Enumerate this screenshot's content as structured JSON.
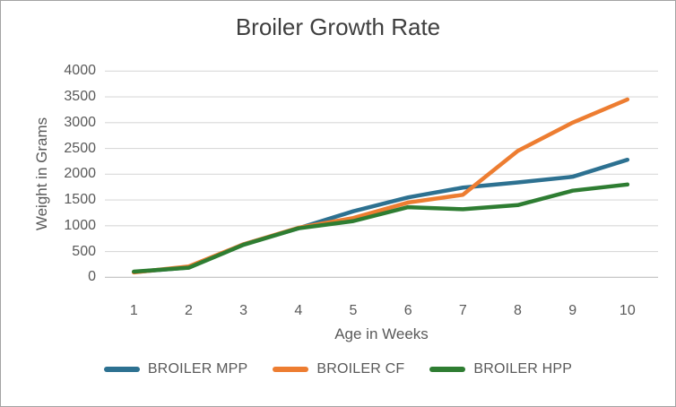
{
  "chart_data": {
    "type": "line",
    "title": "Broiler Growth Rate",
    "xlabel": "Age in Weeks",
    "ylabel": "Weight in Grams",
    "x": [
      1,
      2,
      3,
      4,
      5,
      6,
      7,
      8,
      9,
      10
    ],
    "x_tick_labels": [
      "1",
      "2",
      "3",
      "4",
      "5",
      "6",
      "7",
      "8",
      "9",
      "10"
    ],
    "ylim": [
      0,
      4000
    ],
    "y_ticks": [
      0,
      500,
      1000,
      1500,
      2000,
      2500,
      3000,
      3500,
      4000
    ],
    "y_tick_labels": [
      "0",
      "500",
      "1000",
      "1500",
      "2000",
      "2500",
      "3000",
      "3500",
      "4000"
    ],
    "grid": "horizontal",
    "legend_position": "bottom",
    "series": [
      {
        "name": "BROILER MPP",
        "color": "#2d7191",
        "values": [
          100,
          190,
          640,
          950,
          1280,
          1550,
          1740,
          1840,
          1950,
          2280
        ]
      },
      {
        "name": "BROILER CF",
        "color": "#ed7d31",
        "values": [
          95,
          210,
          640,
          960,
          1150,
          1450,
          1600,
          2450,
          3000,
          3450
        ]
      },
      {
        "name": "BROILER HPP",
        "color": "#2e7d32",
        "values": [
          110,
          185,
          630,
          950,
          1090,
          1360,
          1320,
          1400,
          1680,
          1800
        ]
      }
    ],
    "style": {
      "grid_color": "#d9d9d9",
      "baseline_color": "#bfbfbf",
      "line_width": 4.5,
      "title_color": "#3f3f3f",
      "label_color": "#595959"
    }
  }
}
